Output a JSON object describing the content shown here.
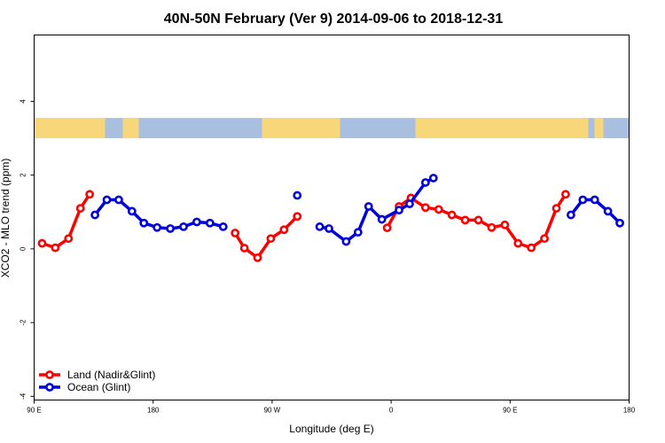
{
  "chart_data": {
    "type": "line",
    "title": "40N-50N February (Ver 9)   2014-09-06 to 2018-12-31",
    "xlabel": "Longitude (deg E)",
    "ylabel": "XCO2 - MLO trend (ppm)",
    "xlim": [
      90,
      540
    ],
    "ylim": [
      -4.1,
      5.8
    ],
    "x_ticks": [
      {
        "value": 90,
        "label": "90 E"
      },
      {
        "value": 180,
        "label": "180"
      },
      {
        "value": 270,
        "label": "90 W"
      },
      {
        "value": 360,
        "label": "0"
      },
      {
        "value": 450,
        "label": "90 E"
      },
      {
        "value": 540,
        "label": "180"
      }
    ],
    "y_ticks": [
      {
        "value": -4,
        "label": "-4"
      },
      {
        "value": -2,
        "label": "-2"
      },
      {
        "value": 0,
        "label": "0"
      },
      {
        "value": 2,
        "label": "2"
      },
      {
        "value": 4,
        "label": "4"
      }
    ],
    "legend_position": "bottom-left",
    "map_strip": {
      "land_color": "#f7d77a",
      "ocean_color": "#a9bfdf",
      "y_range": [
        3.0,
        3.55
      ]
    },
    "series": [
      {
        "name": "Land (Nadir&Glint)",
        "color": "#ff0000",
        "segments": [
          [
            [
              96,
              0.15
            ],
            [
              106,
              0.03
            ],
            [
              116,
              0.28
            ],
            [
              125,
              1.1
            ],
            [
              132,
              1.48
            ]
          ],
          [
            [
              242,
              0.43
            ],
            [
              249,
              0.02
            ],
            [
              259,
              -0.24
            ],
            [
              269,
              0.28
            ],
            [
              279,
              0.52
            ],
            [
              289,
              0.88
            ]
          ],
          [
            [
              357,
              0.57
            ],
            [
              366,
              1.15
            ],
            [
              375,
              1.38
            ],
            [
              386,
              1.12
            ],
            [
              396,
              1.07
            ],
            [
              406,
              0.92
            ],
            [
              416,
              0.78
            ],
            [
              426,
              0.78
            ],
            [
              436,
              0.58
            ],
            [
              446,
              0.65
            ],
            [
              456,
              0.15
            ],
            [
              466,
              0.03
            ],
            [
              476,
              0.28
            ],
            [
              485,
              1.1
            ],
            [
              492,
              1.48
            ]
          ]
        ]
      },
      {
        "name": "Ocean (Glint)",
        "color": "#0000dd",
        "segments": [
          [
            [
              136,
              0.92
            ],
            [
              145,
              1.33
            ],
            [
              154,
              1.33
            ],
            [
              164,
              1.02
            ],
            [
              173,
              0.7
            ],
            [
              183,
              0.58
            ],
            [
              193,
              0.55
            ],
            [
              203,
              0.6
            ],
            [
              213,
              0.73
            ],
            [
              223,
              0.7
            ],
            [
              233,
              0.6
            ]
          ],
          [
            [
              289,
              1.45
            ]
          ],
          [
            [
              306,
              0.6
            ],
            [
              313,
              0.55
            ],
            [
              326,
              0.2
            ],
            [
              335,
              0.45
            ],
            [
              343,
              1.15
            ],
            [
              353,
              0.8
            ],
            [
              366,
              1.05
            ],
            [
              374,
              1.22
            ],
            [
              386,
              1.8
            ],
            [
              392,
              1.92
            ]
          ],
          [
            [
              496,
              0.92
            ],
            [
              505,
              1.33
            ],
            [
              514,
              1.33
            ],
            [
              524,
              1.02
            ],
            [
              533,
              0.7
            ]
          ]
        ]
      }
    ]
  }
}
